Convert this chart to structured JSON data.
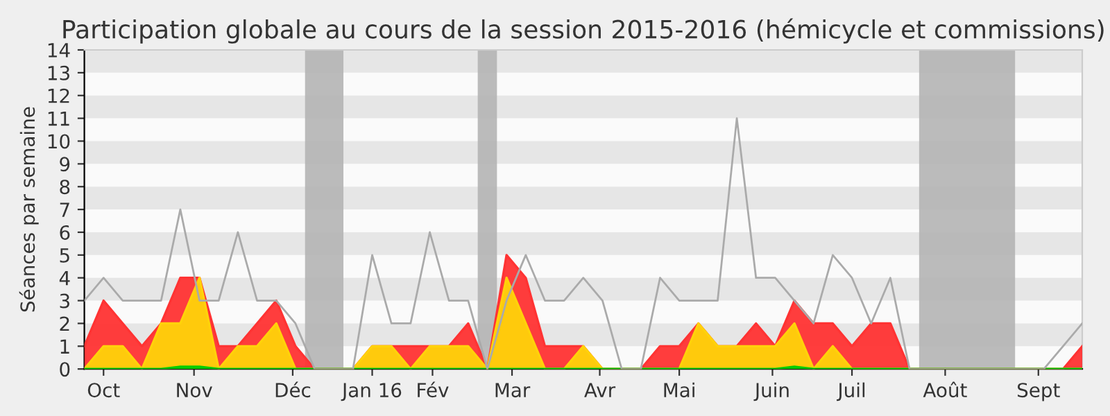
{
  "chart_data": {
    "type": "area",
    "title": "Participation globale au cours de la session 2015-2016 (hémicycle et commissions)",
    "ylabel": "Séances par semaine",
    "x": [
      "2015-09-28",
      "2015-10-05",
      "2015-10-12",
      "2015-10-19",
      "2015-10-26",
      "2015-11-02",
      "2015-11-09",
      "2015-11-16",
      "2015-11-23",
      "2015-11-30",
      "2015-12-07",
      "2015-12-14",
      "2015-12-21",
      "2015-12-28",
      "2016-01-04",
      "2016-01-11",
      "2016-01-18",
      "2016-01-25",
      "2016-02-01",
      "2016-02-08",
      "2016-02-15",
      "2016-02-22",
      "2016-02-29",
      "2016-03-07",
      "2016-03-14",
      "2016-03-21",
      "2016-03-28",
      "2016-04-04",
      "2016-04-11",
      "2016-04-18",
      "2016-04-25",
      "2016-05-02",
      "2016-05-09",
      "2016-05-16",
      "2016-05-23",
      "2016-05-30",
      "2016-06-06",
      "2016-06-13",
      "2016-06-20",
      "2016-06-27",
      "2016-07-04",
      "2016-07-11",
      "2016-07-18",
      "2016-07-25",
      "2016-08-01",
      "2016-08-08",
      "2016-08-15",
      "2016-08-22",
      "2016-08-29",
      "2016-09-05",
      "2016-09-12",
      "2016-09-19",
      "2016-09-26"
    ],
    "series": [
      {
        "type": "line",
        "color": "#aaaaaa",
        "values": [
          3,
          4,
          3,
          3,
          3,
          7,
          3,
          3,
          6,
          3,
          3,
          2,
          0,
          0,
          0,
          5,
          2,
          2,
          6,
          3,
          3,
          0,
          3,
          5,
          3,
          3,
          4,
          3,
          0,
          0,
          4,
          3,
          3,
          3,
          11,
          4,
          4,
          3,
          2,
          5,
          4,
          2,
          4,
          0,
          0,
          0,
          0,
          0,
          0,
          0,
          0,
          1,
          2
        ]
      },
      {
        "color": "#ff3333",
        "values": [
          1,
          3,
          2,
          1,
          2,
          4,
          4,
          1,
          1,
          2,
          3,
          1,
          0,
          0,
          0,
          1,
          1,
          1,
          1,
          1,
          2,
          0,
          5,
          4,
          1,
          1,
          1,
          0,
          0,
          0,
          1,
          1,
          2,
          1,
          1,
          2,
          1,
          3,
          2,
          2,
          1,
          2,
          2,
          0,
          0,
          0,
          0,
          0,
          0,
          0,
          0,
          0,
          1
        ]
      },
      {
        "color": "#ffd20a",
        "values": [
          0,
          1,
          1,
          0,
          2,
          2,
          4,
          0,
          1,
          1,
          2,
          0,
          0,
          0,
          0,
          1,
          1,
          0,
          1,
          1,
          1,
          0,
          4,
          2,
          0,
          0,
          1,
          0,
          0,
          0,
          0,
          0,
          2,
          1,
          1,
          1,
          1,
          2,
          0,
          1,
          0,
          0,
          0,
          0,
          0,
          0,
          0,
          0,
          0,
          0,
          0,
          0,
          0
        ]
      },
      {
        "color": "#00cc00",
        "values": [
          0,
          0,
          0,
          0,
          0,
          0.1,
          0.1,
          0,
          0,
          0,
          0,
          0,
          0,
          0,
          0,
          0,
          0,
          0,
          0,
          0,
          0,
          0,
          0,
          0,
          0,
          0,
          0,
          0,
          0,
          0,
          0,
          0,
          0,
          0,
          0,
          0,
          0,
          0.1,
          0,
          0,
          0,
          0,
          0,
          0,
          0,
          0,
          0,
          0,
          0,
          0,
          0,
          0,
          0
        ]
      }
    ],
    "xlim": [
      "2015-09-28",
      "2016-09-26"
    ],
    "ylim": [
      0,
      14
    ],
    "yticks": [
      0,
      1,
      2,
      3,
      4,
      5,
      6,
      7,
      8,
      9,
      10,
      11,
      12,
      13,
      14
    ],
    "xticks": [
      {
        "value": "2015-10-05",
        "label": "Oct"
      },
      {
        "value": "2015-11-07",
        "label": "Nov"
      },
      {
        "value": "2015-12-13",
        "label": "Déc"
      },
      {
        "value": "2016-01-11",
        "label": "Jan 16"
      },
      {
        "value": "2016-02-02",
        "label": "Fév"
      },
      {
        "value": "2016-03-02",
        "label": "Mar"
      },
      {
        "value": "2016-04-03",
        "label": "Avr"
      },
      {
        "value": "2016-05-02",
        "label": "Mai"
      },
      {
        "value": "2016-06-05",
        "label": "Juin"
      },
      {
        "value": "2016-07-04",
        "label": "Juil"
      },
      {
        "value": "2016-08-07",
        "label": "Août"
      },
      {
        "value": "2016-09-10",
        "label": "Sept"
      }
    ],
    "bands": [
      {
        "axis": "x",
        "from": "2015-12-17T12:00",
        "to": "2015-12-31T12:00",
        "color": "#b4b4b4"
      },
      {
        "axis": "x",
        "from": "2016-02-18T12:00",
        "to": "2016-02-25T12:00",
        "color": "#b4b4b4"
      },
      {
        "axis": "x",
        "from": "2016-07-28T12:00",
        "to": "2016-09-01T12:00",
        "color": "#b4b4b4"
      }
    ],
    "legend": false
  }
}
